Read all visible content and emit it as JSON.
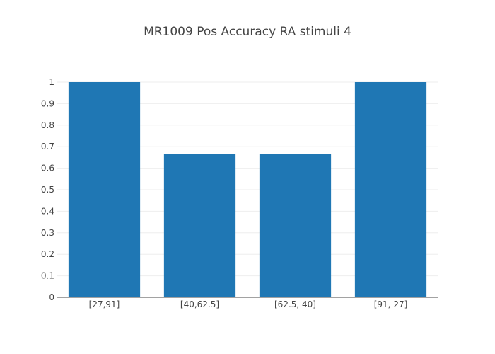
{
  "chart_data": {
    "type": "bar",
    "title": "MR1009 Pos Accuracy RA stimuli 4",
    "xlabel": "",
    "ylabel": "",
    "categories": [
      "[27,91]",
      "[40,62.5]",
      "[62.5, 40]",
      "[91, 27]"
    ],
    "values": [
      1,
      0.6667,
      0.6667,
      1
    ],
    "ylim": [
      0,
      1
    ],
    "yticks": [
      0,
      0.1,
      0.2,
      0.3,
      0.4,
      0.5,
      0.6,
      0.7,
      0.8,
      0.9,
      1
    ],
    "ytick_labels": [
      "0",
      "0.1",
      "0.2",
      "0.3",
      "0.4",
      "0.5",
      "0.6",
      "0.7",
      "0.8",
      "0.9",
      "1"
    ],
    "grid": true,
    "legend": "none",
    "bar_color": "#1f77b4"
  }
}
